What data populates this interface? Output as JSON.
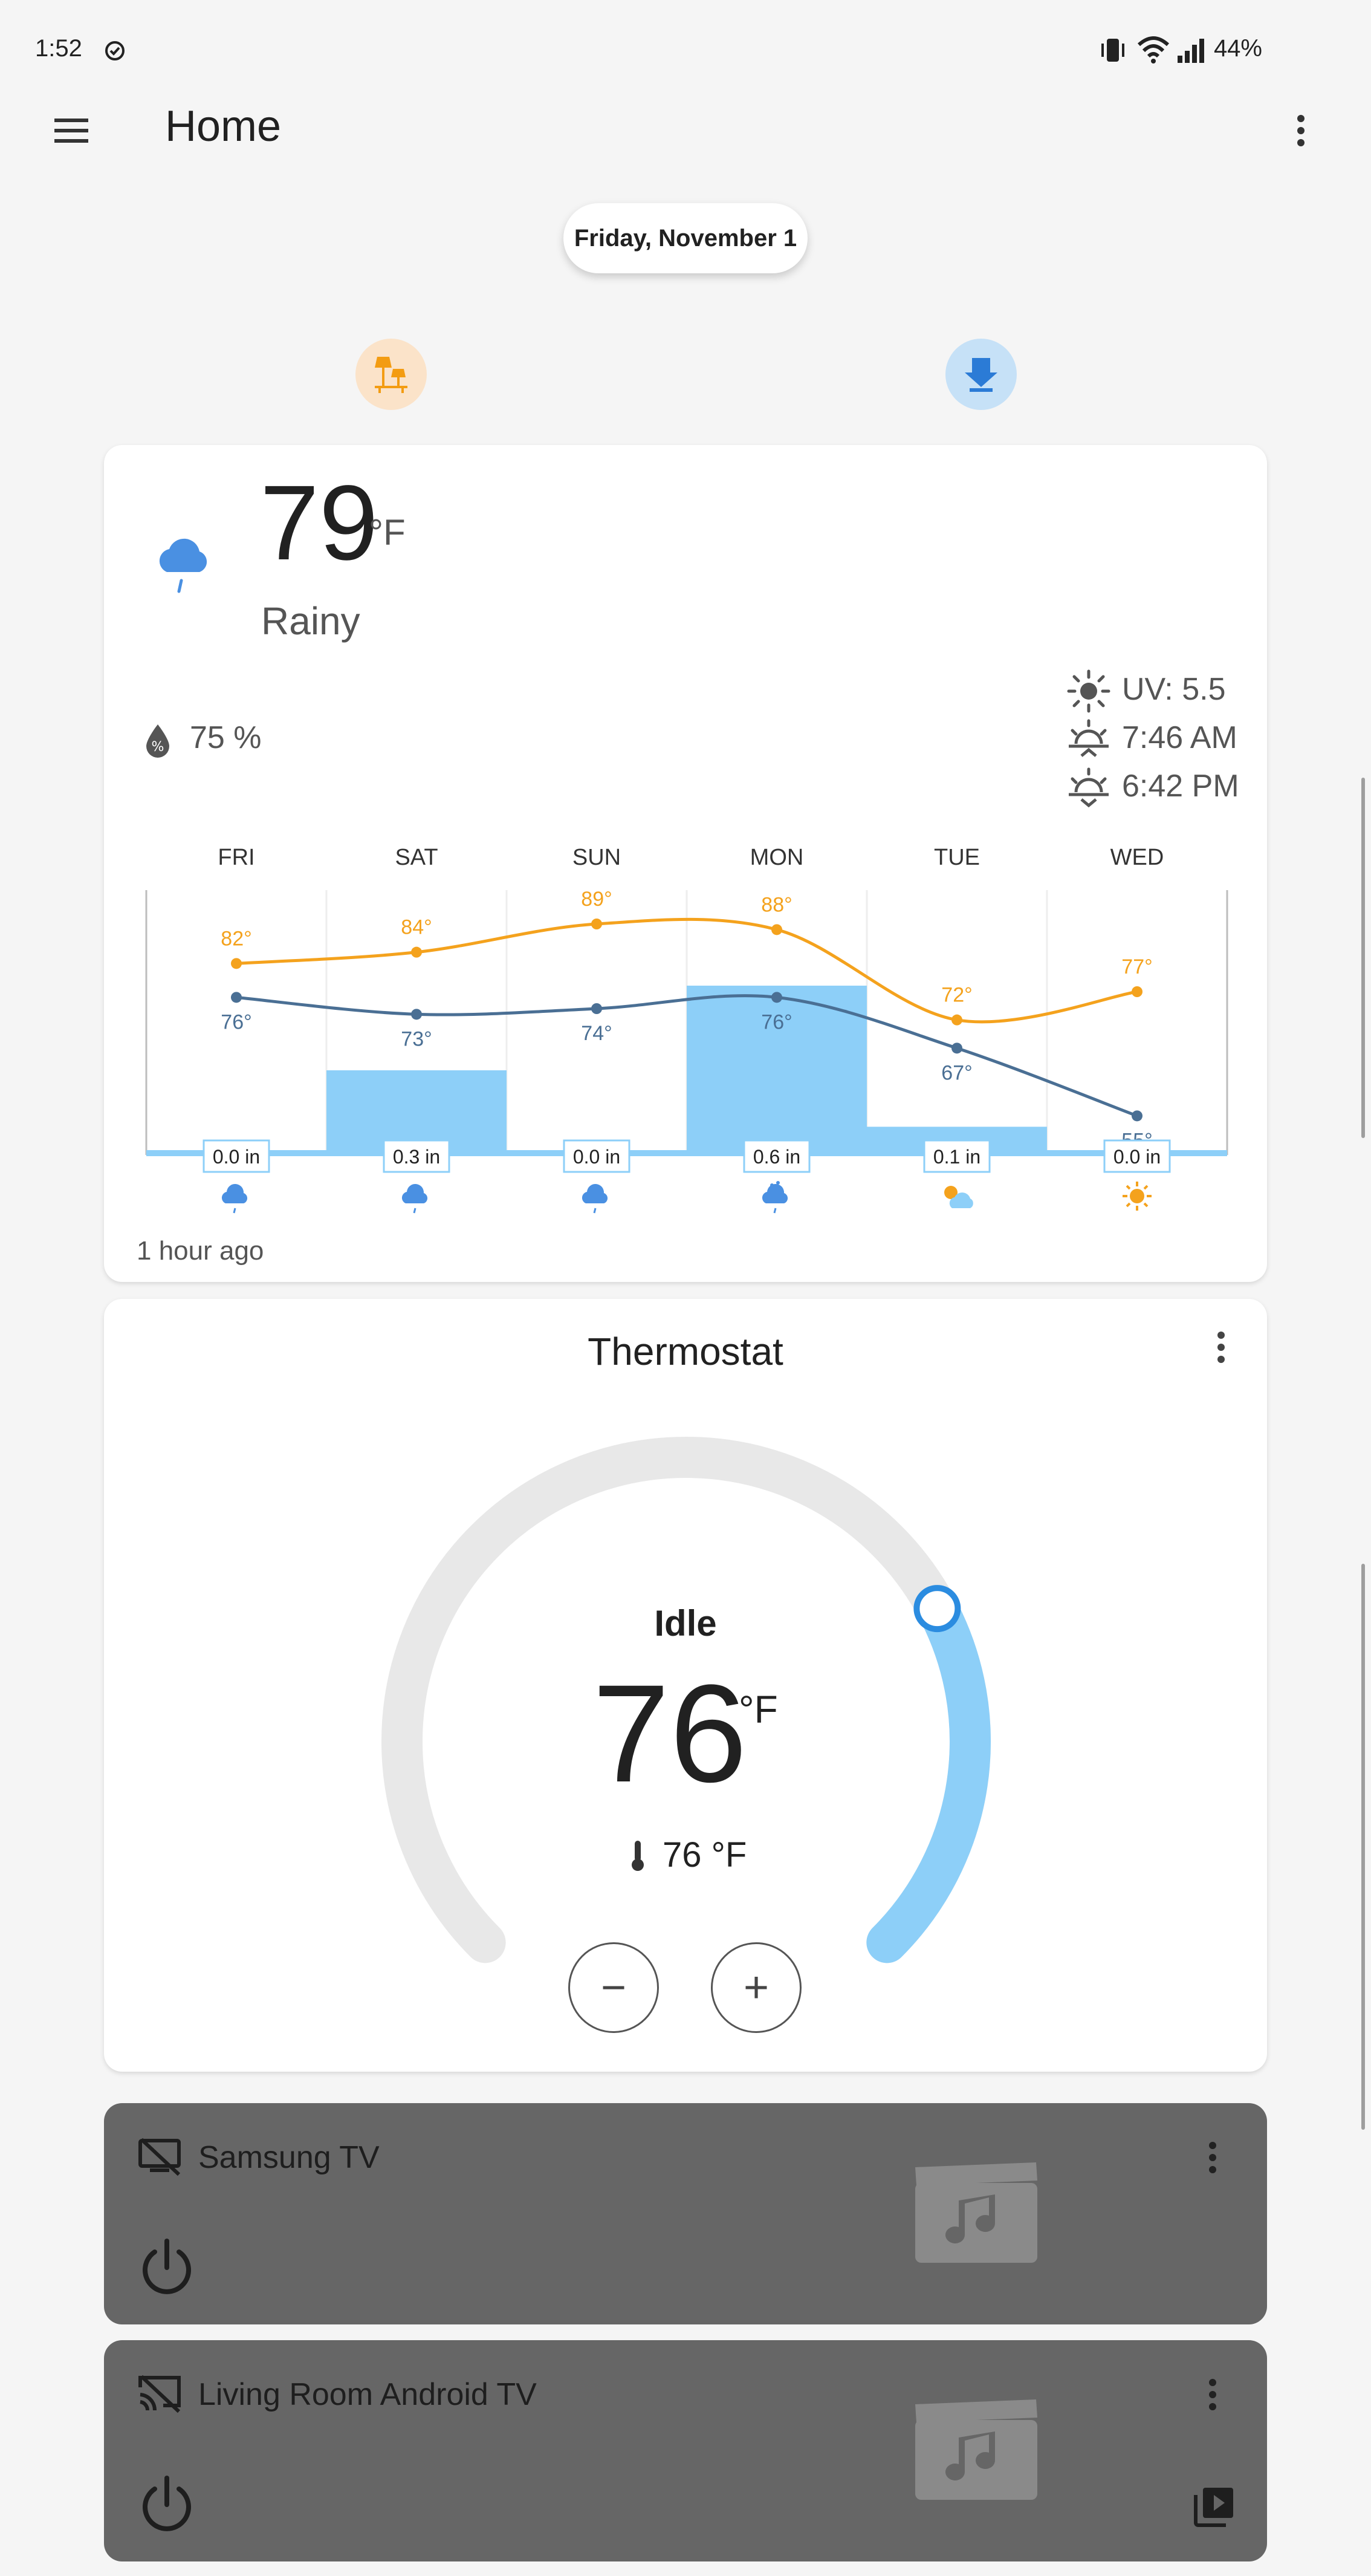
{
  "status_bar": {
    "time": "1:52",
    "battery": "44%"
  },
  "app_bar": {
    "title": "Home"
  },
  "date_label": "Friday, November 1",
  "weather": {
    "temperature": "79",
    "unit": "°F",
    "condition": "Rainy",
    "humidity": "75 %",
    "uv": "UV: 5.5",
    "sunrise": "7:46 AM",
    "sunset": "6:42 PM",
    "updated": "1 hour ago",
    "accent_colors": {
      "high": "#f4a21d",
      "low": "#4a6f94",
      "precip": "#8dcff8"
    }
  },
  "chart_data": {
    "type": "line",
    "categories": [
      "FRI",
      "SAT",
      "SUN",
      "MON",
      "TUE",
      "WED"
    ],
    "series": [
      {
        "values": [
          82,
          84,
          89,
          88,
          72,
          77
        ]
      },
      {
        "values": [
          76,
          73,
          74,
          76,
          67,
          55
        ]
      }
    ],
    "precipitation": [
      0.0,
      0.3,
      0.0,
      0.6,
      0.1,
      0.0
    ],
    "high_labels": [
      "82°",
      "84°",
      "89°",
      "88°",
      "72°",
      "77°"
    ],
    "low_labels": [
      "76°",
      "73°",
      "74°",
      "76°",
      "67°",
      "55°"
    ],
    "precip_labels": [
      "0.0 in",
      "0.3 in",
      "0.0 in",
      "0.6 in",
      "0.1 in",
      "0.0 in"
    ],
    "condition_icons": [
      "rainy-icon",
      "rainy-icon",
      "rainy-icon",
      "pouring-icon",
      "partly-cloudy-icon",
      "sunny-icon"
    ],
    "temp_range": [
      50,
      95
    ],
    "precip_range": [
      0,
      0.9
    ],
    "grid": true
  },
  "thermostat": {
    "title": "Thermostat",
    "state": "Idle",
    "target": "76",
    "unit": "°F",
    "current": "76 °F",
    "arc_fill_fraction": 0.27,
    "minus": "−",
    "plus": "+"
  },
  "media": [
    {
      "name": "Samsung TV"
    },
    {
      "name": "Living Room Android TV"
    }
  ]
}
